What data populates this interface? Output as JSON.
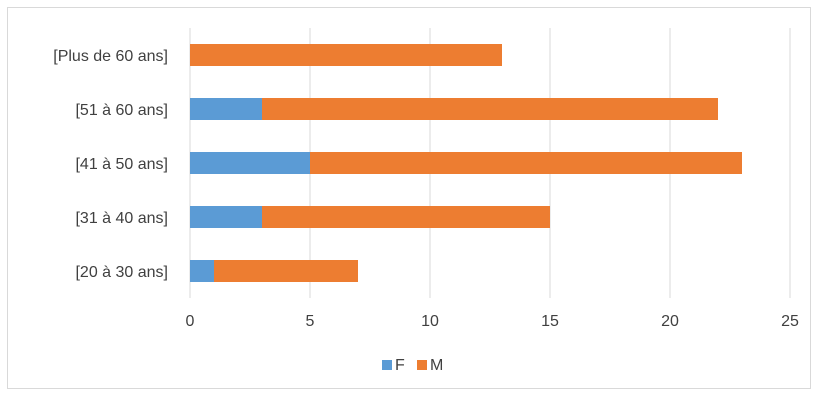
{
  "chart_data": {
    "type": "bar",
    "orientation": "horizontal",
    "stacked": true,
    "categories": [
      "[20 à 30 ans]",
      "[31 à 40 ans]",
      "[41 à 50 ans]",
      "[51 à 60 ans]",
      "[Plus de 60 ans]"
    ],
    "series": [
      {
        "name": "F",
        "values": [
          1,
          3,
          5,
          3,
          0
        ],
        "color": "#5b9bd5"
      },
      {
        "name": "M",
        "values": [
          6,
          12,
          18,
          19,
          13
        ],
        "color": "#ed7d31"
      }
    ],
    "x_ticks": [
      "0",
      "5",
      "10",
      "15",
      "20",
      "25"
    ],
    "xlim": [
      0,
      25
    ],
    "title": "",
    "xlabel": "",
    "ylabel": "",
    "grid": "vertical",
    "legend_position": "bottom"
  }
}
